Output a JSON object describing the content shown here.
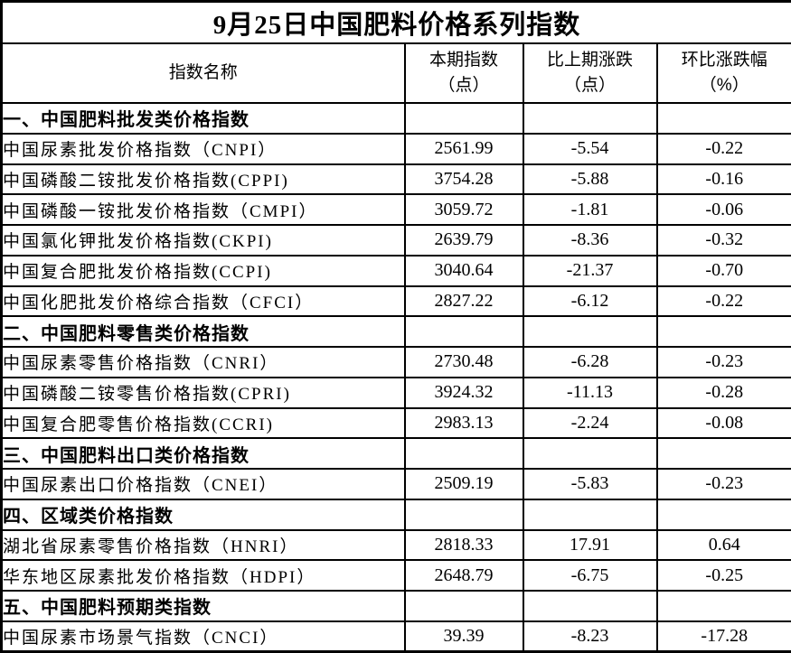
{
  "page": {
    "title": "9月25日中国肥料价格系列指数"
  },
  "header": {
    "columns": [
      {
        "line1": "指数名称",
        "line2": ""
      },
      {
        "line1": "本期指数",
        "line2": "（点）"
      },
      {
        "line1": "比上期涨跌",
        "line2": "（点）"
      },
      {
        "line1": "环比涨跌幅",
        "line2": "（%）"
      }
    ]
  },
  "colors": {
    "border": "#000000",
    "background": "#ffffff",
    "text": "#000000"
  },
  "chart_data": {
    "type": "table",
    "title": "9月25日中国肥料价格系列指数",
    "columns": [
      "指数名称",
      "本期指数（点）",
      "比上期涨跌（点）",
      "环比涨跌幅（%）"
    ],
    "rows": [
      {
        "kind": "section",
        "cells": [
          "一、中国肥料批发类价格指数",
          "",
          "",
          ""
        ]
      },
      {
        "kind": "data",
        "cells": [
          "中国尿素批发价格指数（CNPI）",
          "2561.99",
          "-5.54",
          "-0.22"
        ]
      },
      {
        "kind": "data",
        "cells": [
          "中国磷酸二铵批发价格指数(CPPI)",
          "3754.28",
          "-5.88",
          "-0.16"
        ]
      },
      {
        "kind": "data",
        "cells": [
          "中国磷酸一铵批发价格指数（CMPI）",
          "3059.72",
          "-1.81",
          "-0.06"
        ]
      },
      {
        "kind": "data",
        "cells": [
          "中国氯化钾批发价格指数(CKPI)",
          "2639.79",
          "-8.36",
          "-0.32"
        ]
      },
      {
        "kind": "data",
        "cells": [
          "中国复合肥批发价格指数(CCPI)",
          "3040.64",
          "-21.37",
          "-0.70"
        ]
      },
      {
        "kind": "data",
        "cells": [
          "中国化肥批发价格综合指数（CFCI）",
          "2827.22",
          "-6.12",
          "-0.22"
        ]
      },
      {
        "kind": "section",
        "cells": [
          "二、中国肥料零售类价格指数",
          "",
          "",
          ""
        ]
      },
      {
        "kind": "data",
        "cells": [
          "中国尿素零售价格指数（CNRI）",
          "2730.48",
          "-6.28",
          "-0.23"
        ]
      },
      {
        "kind": "data",
        "cells": [
          "中国磷酸二铵零售价格指数(CPRI)",
          "3924.32",
          "-11.13",
          "-0.28"
        ]
      },
      {
        "kind": "data",
        "cells": [
          "中国复合肥零售价格指数(CCRI)",
          "2983.13",
          "-2.24",
          "-0.08"
        ]
      },
      {
        "kind": "section",
        "cells": [
          "三、中国肥料出口类价格指数",
          "",
          "",
          ""
        ]
      },
      {
        "kind": "data",
        "cells": [
          "中国尿素出口价格指数（CNEI）",
          "2509.19",
          "-5.83",
          "-0.23"
        ]
      },
      {
        "kind": "section",
        "cells": [
          "四、区域类价格指数",
          "",
          "",
          ""
        ]
      },
      {
        "kind": "data",
        "cells": [
          "湖北省尿素零售价格指数（HNRI）",
          "2818.33",
          "17.91",
          "0.64"
        ]
      },
      {
        "kind": "data",
        "cells": [
          "华东地区尿素批发价格指数（HDPI）",
          "2648.79",
          "-6.75",
          "-0.25"
        ]
      },
      {
        "kind": "section",
        "cells": [
          "五、中国肥料预期类指数",
          "",
          "",
          ""
        ]
      },
      {
        "kind": "data",
        "cells": [
          "中国尿素市场景气指数（CNCI）",
          "39.39",
          "-8.23",
          "-17.28"
        ]
      }
    ]
  }
}
